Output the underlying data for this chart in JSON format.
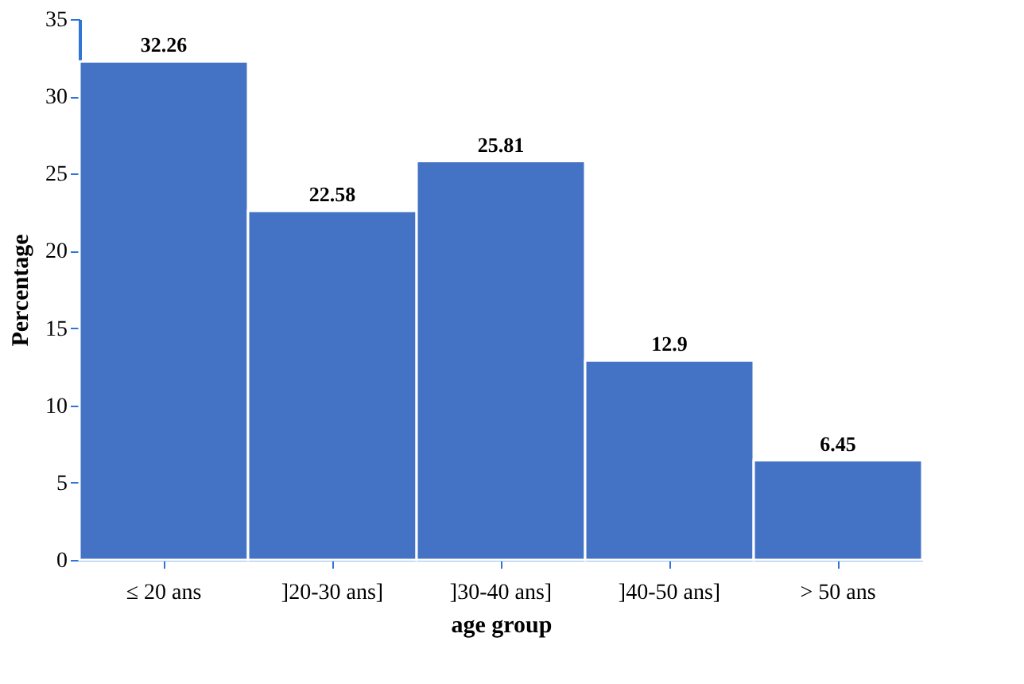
{
  "chart_data": {
    "type": "bar",
    "xlabel": "age group",
    "ylabel": "Percentage",
    "categories": [
      "≤ 20 ans",
      "]20-30 ans]",
      "]30-40 ans]",
      "]40-50 ans]",
      "> 50 ans"
    ],
    "values": [
      32.26,
      22.58,
      25.81,
      12.9,
      6.45
    ],
    "color": "#4472c4",
    "ylim": [
      0,
      35
    ],
    "yticks": [
      0,
      5,
      10,
      15,
      20,
      25,
      30,
      35
    ],
    "grid": false,
    "data_labels": true
  }
}
